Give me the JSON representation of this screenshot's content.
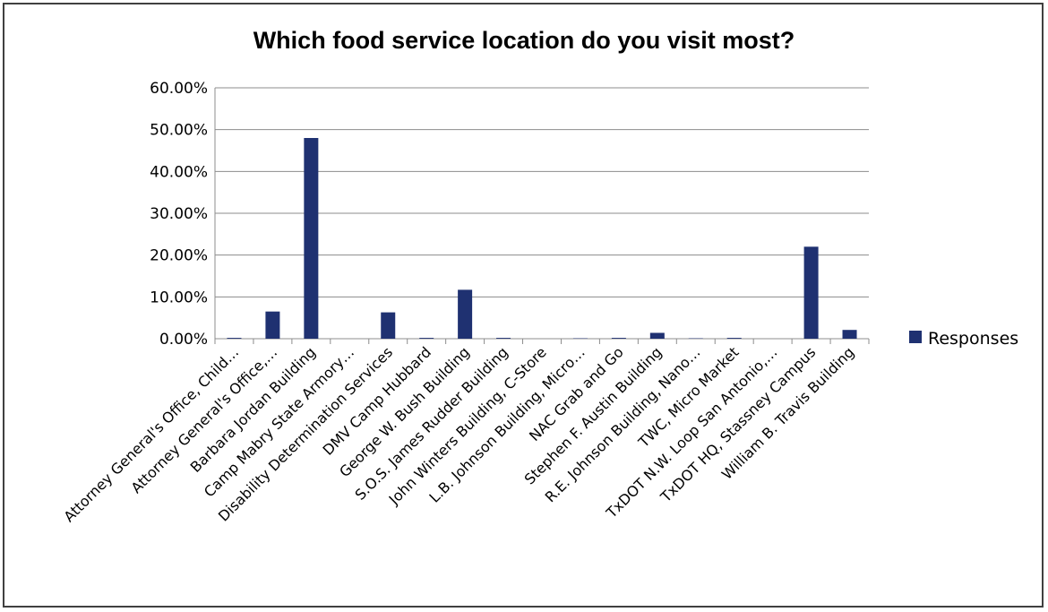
{
  "chart_data": {
    "type": "bar",
    "title": "Which food service location do you visit most?",
    "categories": [
      "Attorney General's Office, Child…",
      "Attorney General's Office,…",
      "Barbara Jordan Building",
      "Camp Mabry State Armory…",
      "Disability Determination Services",
      "DMV Camp Hubbard",
      "George W. Bush Building",
      "S.O.S. James Rudder Building",
      "John Winters Building, C-Store",
      "L.B. Johnson Building, Micro…",
      "NAC Grab and Go",
      "Stephen F. Austin Building",
      "R.E. Johnson Building, Nano…",
      "TWC, Micro Market",
      "TxDOT N.W. Loop San Antonio,…",
      "TxDOT HQ, Stassney Campus",
      "William B. Travis Building"
    ],
    "series": [
      {
        "name": "Responses",
        "color": "#1f3171",
        "values": [
          0.2,
          6.5,
          48.0,
          0.0,
          6.3,
          0.2,
          11.7,
          0.2,
          0.0,
          0.1,
          0.2,
          1.4,
          0.1,
          0.2,
          0.0,
          22.0,
          2.1
        ]
      }
    ],
    "ylim": [
      0,
      60
    ],
    "yticks": [
      "0.00%",
      "10.00%",
      "20.00%",
      "30.00%",
      "40.00%",
      "50.00%",
      "60.00%"
    ],
    "xlabel": "",
    "ylabel": "",
    "grid": true,
    "legend_position": "right"
  }
}
